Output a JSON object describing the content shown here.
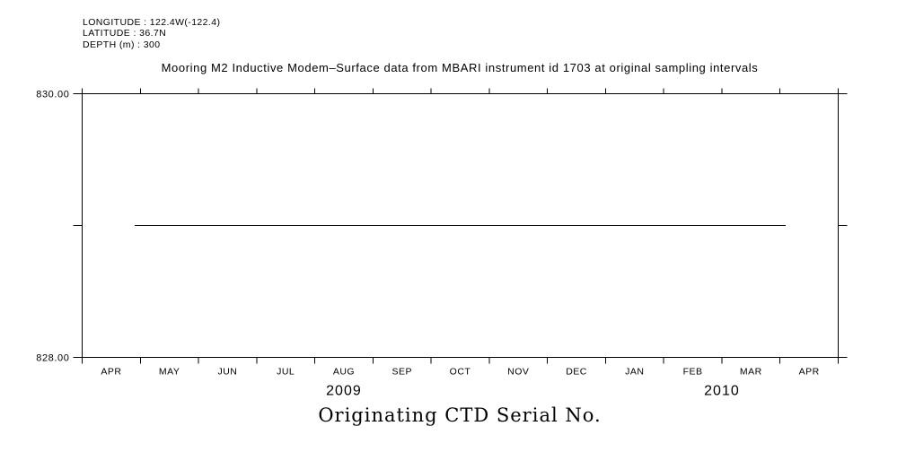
{
  "station": {
    "longitude": "LONGITUDE : 122.4W(-122.4)",
    "latitude": "LATITUDE : 36.7N",
    "depth": "DEPTH (m) : 300"
  },
  "chart_data": {
    "type": "line",
    "title": "Mooring M2 Inductive Modem–Surface data from MBARI instrument id 1703 at original sampling intervals",
    "xlabel": "Originating CTD Serial No.",
    "x_axis": {
      "months": [
        "APR",
        "MAY",
        "JUN",
        "JUL",
        "AUG",
        "SEP",
        "OCT",
        "NOV",
        "DEC",
        "JAN",
        "FEB",
        "MAR",
        "APR"
      ],
      "years": [
        {
          "label": "2009",
          "center_month": 4.5
        },
        {
          "label": "2010",
          "center_month": 11
        }
      ]
    },
    "y_axis": {
      "min": 828.0,
      "max": 830.0,
      "ticks": [
        {
          "value": 830.0,
          "label": "830.00"
        },
        {
          "value": 829.0,
          "label": ""
        },
        {
          "value": 828.0,
          "label": "828.00"
        }
      ]
    },
    "series": [
      {
        "name": "Originating CTD Serial No.",
        "value": 829.0,
        "start_month": 0.9,
        "end_month": 12.1
      }
    ],
    "layout": {
      "grid": false,
      "legend": "none",
      "line_color": "#000000",
      "background": "#ffffff"
    }
  }
}
